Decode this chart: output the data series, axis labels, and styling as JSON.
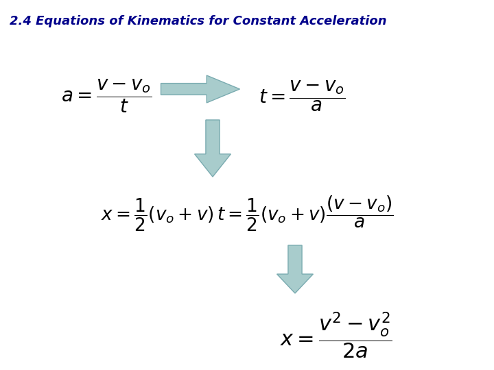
{
  "title": "2.4 Equations of Kinematics for Constant Acceleration",
  "title_color": "#00008B",
  "title_fontsize": 13,
  "bg_color": "#ffffff",
  "arrow_color": "#A8CCCC",
  "arrow_edge_color": "#7AABB0",
  "figw": 7.2,
  "figh": 5.4,
  "dpi": 100
}
